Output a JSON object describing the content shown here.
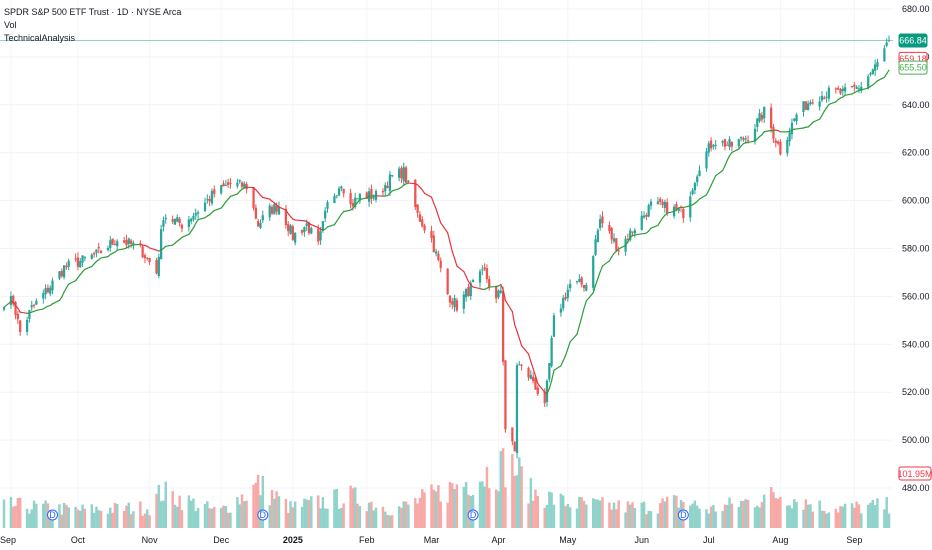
{
  "chart_data": {
    "type": "candlestick",
    "title": "SPDR S&P 500 ETF Trust · 1D · NYSE Arca",
    "indicators": [
      "Vol",
      "TechnicalAnalysis"
    ],
    "ylim": [
      470,
      685
    ],
    "y_ticks": [
      "680.00",
      "660.00",
      "640.00",
      "620.00",
      "600.00",
      "580.00",
      "560.00",
      "540.00",
      "520.00",
      "500.00",
      "480.00"
    ],
    "x_labels": [
      "Sep",
      "Oct",
      "Nov",
      "Dec",
      "2025",
      "Feb",
      "Mar",
      "Apr",
      "May",
      "Jun",
      "Jul",
      "Aug",
      "Sep"
    ],
    "price_labels": {
      "last": {
        "value": 666.84,
        "text": "666.84",
        "color": "#089981"
      },
      "upper": {
        "value": 659.18,
        "text": "659.18",
        "color": "#f23645"
      },
      "lower": {
        "value": 655.5,
        "text": "655.50",
        "color": "#4caf50"
      },
      "volume": {
        "text": "101.95M",
        "color": "#f23645"
      }
    },
    "colors": {
      "up": "#26a69a",
      "down": "#ef5350",
      "vol_up": "#8fd3ca",
      "vol_down": "#f7a9a7",
      "ma_up": "#2e9c3a",
      "ma_down": "#e8333d"
    },
    "dividend_markers": [
      "D",
      "D",
      "D",
      "D"
    ],
    "price_path": [
      [
        "2024-09-03",
        558
      ],
      [
        "2024-09-06",
        545
      ],
      [
        "2024-09-11",
        555
      ],
      [
        "2024-09-18",
        563
      ],
      [
        "2024-09-25",
        572
      ],
      [
        "2024-10-03",
        575
      ],
      [
        "2024-10-10",
        578
      ],
      [
        "2024-10-18",
        584
      ],
      [
        "2024-10-28",
        580
      ],
      [
        "2024-11-04",
        570
      ],
      [
        "2024-11-07",
        594
      ],
      [
        "2024-11-15",
        590
      ],
      [
        "2024-11-22",
        596
      ],
      [
        "2024-11-29",
        603
      ],
      [
        "2024-12-06",
        607
      ],
      [
        "2024-12-13",
        606
      ],
      [
        "2024-12-18",
        590
      ],
      [
        "2024-12-23",
        596
      ],
      [
        "2024-12-27",
        598
      ],
      [
        "2025-01-02",
        585
      ],
      [
        "2025-01-08",
        590
      ],
      [
        "2025-01-13",
        581
      ],
      [
        "2025-01-17",
        598
      ],
      [
        "2025-01-23",
        608
      ],
      [
        "2025-01-27",
        598
      ],
      [
        "2025-01-31",
        602
      ],
      [
        "2025-02-07",
        602
      ],
      [
        "2025-02-14",
        610
      ],
      [
        "2025-02-19",
        612
      ],
      [
        "2025-02-25",
        594
      ],
      [
        "2025-03-03",
        584
      ],
      [
        "2025-03-10",
        561
      ],
      [
        "2025-03-14",
        556
      ],
      [
        "2025-03-21",
        565
      ],
      [
        "2025-03-26",
        570
      ],
      [
        "2025-03-31",
        558
      ],
      [
        "2025-04-02",
        563
      ],
      [
        "2025-04-04",
        505
      ],
      [
        "2025-04-08",
        495
      ],
      [
        "2025-04-09",
        532
      ],
      [
        "2025-04-16",
        525
      ],
      [
        "2025-04-21",
        513
      ],
      [
        "2025-04-25",
        550
      ],
      [
        "2025-05-02",
        565
      ],
      [
        "2025-05-09",
        565
      ],
      [
        "2025-05-15",
        592
      ],
      [
        "2025-05-23",
        580
      ],
      [
        "2025-05-30",
        589
      ],
      [
        "2025-06-06",
        598
      ],
      [
        "2025-06-13",
        597
      ],
      [
        "2025-06-20",
        595
      ],
      [
        "2025-06-27",
        615
      ],
      [
        "2025-07-03",
        625
      ],
      [
        "2025-07-11",
        623
      ],
      [
        "2025-07-18",
        627
      ],
      [
        "2025-07-25",
        637
      ],
      [
        "2025-08-01",
        621
      ],
      [
        "2025-08-08",
        636
      ],
      [
        "2025-08-15",
        643
      ],
      [
        "2025-08-22",
        645
      ],
      [
        "2025-08-29",
        645
      ],
      [
        "2025-09-05",
        648
      ],
      [
        "2025-09-12",
        657
      ],
      [
        "2025-09-17",
        666.84
      ]
    ],
    "volume_ylim": [
      0,
      140
    ],
    "volume_anchors": [
      [
        "2024-09-03",
        50
      ],
      [
        "2024-10-01",
        40
      ],
      [
        "2024-11-01",
        45
      ],
      [
        "2024-11-06",
        80
      ],
      [
        "2024-12-01",
        35
      ],
      [
        "2024-12-18",
        95
      ],
      [
        "2025-01-01",
        45
      ],
      [
        "2025-01-27",
        70
      ],
      [
        "2025-02-15",
        40
      ],
      [
        "2025-03-10",
        85
      ],
      [
        "2025-04-04",
        140
      ],
      [
        "2025-04-08",
        135
      ],
      [
        "2025-04-15",
        80
      ],
      [
        "2025-05-01",
        55
      ],
      [
        "2025-06-01",
        45
      ],
      [
        "2025-06-20",
        60
      ],
      [
        "2025-07-01",
        40
      ],
      [
        "2025-08-01",
        75
      ],
      [
        "2025-08-20",
        45
      ],
      [
        "2025-09-01",
        45
      ],
      [
        "2025-09-17",
        50
      ]
    ]
  }
}
